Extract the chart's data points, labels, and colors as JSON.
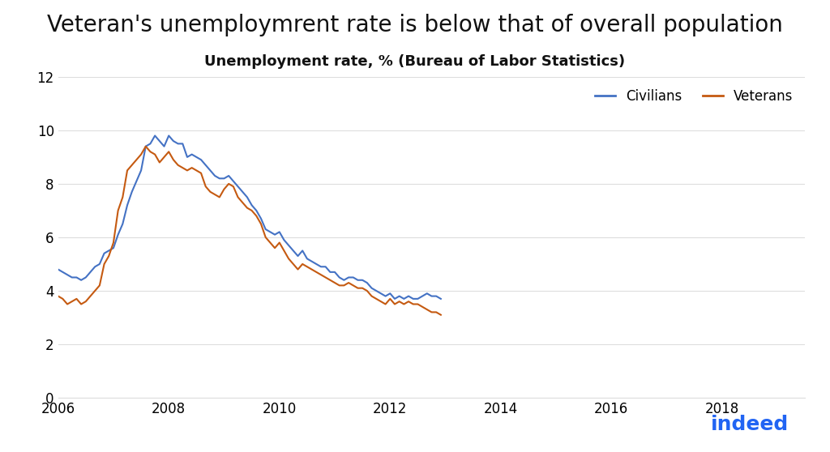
{
  "title": "Veteran's unemploymrent rate is below that of overall population",
  "subtitle": "Unemployment rate, % (Bureau of Labor Statistics)",
  "title_fontsize": 20,
  "subtitle_fontsize": 13,
  "line_color_civilians": "#4472C4",
  "line_color_veterans": "#C55A11",
  "background_color": "#FFFFFF",
  "ylim": [
    0,
    12
  ],
  "yticks": [
    0,
    2,
    4,
    6,
    8,
    10,
    12
  ],
  "xtick_years": [
    2006,
    2008,
    2010,
    2012,
    2014,
    2016,
    2018
  ],
  "legend_civilians": "Civilians",
  "legend_veterans": "Veterans",
  "civilians": [
    4.8,
    4.7,
    4.6,
    4.5,
    4.5,
    4.4,
    4.5,
    4.7,
    4.9,
    5.0,
    5.4,
    5.5,
    5.6,
    6.1,
    6.5,
    7.2,
    7.7,
    8.1,
    8.5,
    9.4,
    9.5,
    9.8,
    9.6,
    9.4,
    9.8,
    9.6,
    9.5,
    9.5,
    9.0,
    9.1,
    9.0,
    8.9,
    8.7,
    8.5,
    8.3,
    8.2,
    8.2,
    8.3,
    8.1,
    7.9,
    7.7,
    7.5,
    7.2,
    7.0,
    6.7,
    6.3,
    6.2,
    6.1,
    6.2,
    5.9,
    5.7,
    5.5,
    5.3,
    5.5,
    5.2,
    5.1,
    5.0,
    4.9,
    4.9,
    4.7,
    4.7,
    4.5,
    4.4,
    4.5,
    4.5,
    4.4,
    4.4,
    4.3,
    4.1,
    4.0,
    3.9,
    3.8,
    3.9,
    3.7,
    3.8,
    3.7,
    3.8,
    3.7,
    3.7,
    3.8,
    3.9,
    3.8,
    3.8,
    3.7
  ],
  "veterans": [
    3.8,
    3.7,
    3.5,
    3.6,
    3.7,
    3.5,
    3.6,
    3.8,
    4.0,
    4.2,
    5.0,
    5.3,
    5.8,
    7.0,
    7.5,
    8.5,
    8.7,
    8.9,
    9.1,
    9.4,
    9.2,
    9.1,
    8.8,
    9.0,
    9.2,
    8.9,
    8.7,
    8.6,
    8.5,
    8.6,
    8.5,
    8.4,
    7.9,
    7.7,
    7.6,
    7.5,
    7.8,
    8.0,
    7.9,
    7.5,
    7.3,
    7.1,
    7.0,
    6.8,
    6.5,
    6.0,
    5.8,
    5.6,
    5.8,
    5.5,
    5.2,
    5.0,
    4.8,
    5.0,
    4.9,
    4.8,
    4.7,
    4.6,
    4.5,
    4.4,
    4.3,
    4.2,
    4.2,
    4.3,
    4.2,
    4.1,
    4.1,
    4.0,
    3.8,
    3.7,
    3.6,
    3.5,
    3.7,
    3.5,
    3.6,
    3.5,
    3.6,
    3.5,
    3.5,
    3.4,
    3.3,
    3.2,
    3.2,
    3.1
  ],
  "start_year": 2006,
  "n_points": 84,
  "indeed_color": "#2164F3",
  "grid_color": "#DDDDDD"
}
